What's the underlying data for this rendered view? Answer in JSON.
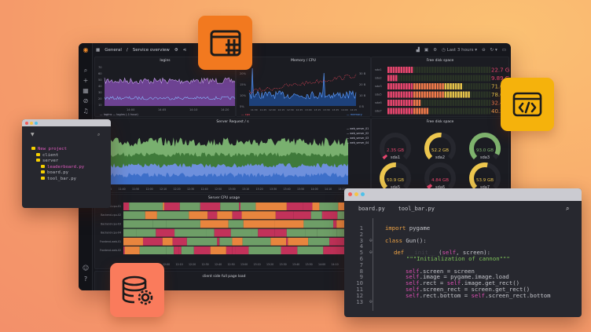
{
  "dashboard": {
    "breadcrumb": {
      "folder": "General",
      "separator": "/",
      "title": "Service overview"
    },
    "time_range": "Last 3 hours",
    "panels": {
      "logins": {
        "title": "logins",
        "y_ticks": [
          "70",
          "60",
          "50",
          "40",
          "30",
          "20",
          "10"
        ],
        "x_ticks": [
          "14:00",
          "14:05",
          "14:10",
          "14:20"
        ],
        "legend": [
          "logins",
          "logins (-1 hour)"
        ]
      },
      "memory_cpu": {
        "title": "Memory / CPU",
        "y_left": [
          "20%",
          "15%",
          "10%",
          "5%"
        ],
        "y_right": [
          "30 B",
          "20 B",
          "10 B",
          "0 B"
        ],
        "x_ticks": [
          "11:30",
          "11:45",
          "12:00",
          "12:15",
          "12:30",
          "12:45",
          "13:00",
          "13:15",
          "13:30",
          "13:45",
          "14:00",
          "14:15"
        ],
        "legend": [
          "cpu",
          "memory"
        ]
      },
      "disk_bars": {
        "title": "Free disk space",
        "items": [
          {
            "label": "sda1",
            "value": "22.7 GB",
            "fill": 0.23,
            "color": "#e8466e"
          },
          {
            "label": "sda2",
            "value": "9.89 GB",
            "fill": 0.1,
            "color": "#e8466e"
          },
          {
            "label": "sda3",
            "value": "71.0 GB",
            "fill": 0.71,
            "color": "#e6c34a"
          },
          {
            "label": "sda5",
            "value": "78.6 GB",
            "fill": 0.79,
            "color": "#e6c34a"
          },
          {
            "label": "sda6",
            "value": "32.4 GB",
            "fill": 0.32,
            "color": "#f07a4a"
          },
          {
            "label": "sda7",
            "value": "40.3 GB",
            "fill": 0.4,
            "color": "#f09a4a"
          }
        ]
      },
      "server_requests": {
        "title": "Server Request / s",
        "x_ticks": [
          "11:30",
          "11:40",
          "11:50",
          "12:00",
          "12:10",
          "12:20",
          "12:30",
          "12:40",
          "12:50",
          "13:00",
          "13:10",
          "13:20",
          "13:30",
          "13:40",
          "13:50",
          "14:00",
          "14:10",
          "14:20"
        ],
        "legend": [
          "web_server_01",
          "web_server_02",
          "web_server_03",
          "web_server_04"
        ]
      },
      "disk_gauges": {
        "title": "Free disk space",
        "items": [
          {
            "label": "sda1",
            "value": "2.35 GB",
            "fill": 0.03,
            "color": "#e8466e"
          },
          {
            "label": "sda2",
            "value": "52.2 GB",
            "fill": 0.52,
            "color": "#ecc64e"
          },
          {
            "label": "sda3",
            "value": "93.0 GB",
            "fill": 0.93,
            "color": "#7eb26d"
          },
          {
            "label": "sda5",
            "value": "50.9 GB",
            "fill": 0.51,
            "color": "#ecc64e"
          },
          {
            "label": "sda6",
            "value": "4.84 GB",
            "fill": 0.05,
            "color": "#e8466e"
          },
          {
            "label": "sda7",
            "value": "53.9 GB",
            "fill": 0.54,
            "color": "#ecc64e"
          }
        ]
      },
      "cpu_usage": {
        "title": "Server CPU usage",
        "rows": [
          "Backend-cpu-01",
          "Backend-cpu-02",
          "Backend-cpu-03",
          "Backend-cpu-04",
          "Frontend-web-01",
          "Frontend-web-02"
        ],
        "x_ticks": [
          "12:00",
          "12:10",
          "12:20",
          "12:30",
          "12:40",
          "12:50",
          "13:00",
          "13:10",
          "13:20",
          "13:30",
          "13:40",
          "13:50",
          "14:00",
          "14:10"
        ]
      },
      "page_load": {
        "title": "client side full page load"
      }
    }
  },
  "file_tree": {
    "items": [
      {
        "name": "New project",
        "depth": 0,
        "highlight": true
      },
      {
        "name": "client",
        "depth": 1
      },
      {
        "name": "server",
        "depth": 1
      },
      {
        "name": "leaderboard.py",
        "depth": 2,
        "highlight": true
      },
      {
        "name": "board.py",
        "depth": 2
      },
      {
        "name": "tool_bar.py",
        "depth": 2
      }
    ]
  },
  "editor": {
    "tabs": [
      "board.py",
      "tool_bar.py"
    ],
    "lines": [
      "1",
      "2",
      "3",
      "4",
      "5",
      "6",
      "7",
      "8",
      "9",
      "10",
      "11",
      "12",
      "13"
    ],
    "code": {
      "l1a": "import",
      "l1b": " pygame",
      "l3a": "class",
      "l3b": " Gun():",
      "l5a": "def",
      "l5b": " __init__",
      "l5c": " (",
      "l5d": "self",
      "l5e": ", screen):",
      "l6": "\"\"\"Initialization of cannon\"\"\"",
      "l8a": "self",
      ".l8b": "",
      "l8b": ".screen = screen",
      "l9a": "self",
      "l9b": ".image = pygame.image.load",
      "l10a": "self",
      "l10b": ".rect = ",
      "l10c": "self",
      "l10d": ".image.get_rect()",
      "l11a": "self",
      "l11b": ".screen_rect = screen.get_rect()",
      "l12a": "self",
      "l12b": ".rect.bottom = ",
      "l12c": "self",
      "l12d": ".screen_rect.bottom"
    }
  },
  "colors": {
    "browser_icon": "#f2791f",
    "code_icon": "#f5b20c",
    "database_icon": "#fa7b5c",
    "dashboard_bg": "#16171d"
  },
  "icons": [
    "browser-grid-icon",
    "code-window-icon",
    "database-gear-icon"
  ]
}
